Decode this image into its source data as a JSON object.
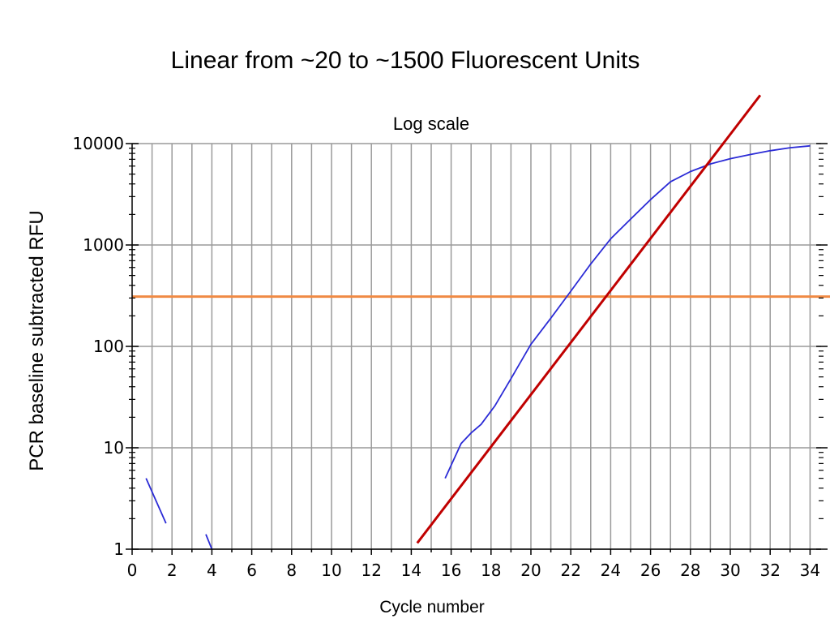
{
  "colors": {
    "grid": "#9a9a9a",
    "axis": "#000000",
    "curve": "#2b2bd6",
    "threshold": "#f08a44",
    "fit_line": "#c00000"
  },
  "chart_data": {
    "type": "line",
    "slide_title": "Linear from ~20 to ~1500 Fluorescent Units",
    "title": "Log scale",
    "xlabel": "Cycle number",
    "ylabel": "PCR baseline subtracted RFU",
    "yscale": "log",
    "xlim": [
      0,
      35
    ],
    "ylim": [
      1,
      10000
    ],
    "grid": true,
    "xticks": [
      0,
      2,
      4,
      6,
      8,
      10,
      12,
      14,
      16,
      18,
      20,
      22,
      24,
      26,
      28,
      30,
      32,
      34
    ],
    "yticks": [
      1,
      10,
      100,
      1000,
      10000
    ],
    "series": [
      {
        "role": "amplification-curve",
        "segments": [
          [
            [
              0.7,
              5
            ],
            [
              1.7,
              1.8
            ]
          ],
          [
            [
              3.7,
              1.4
            ],
            [
              4.0,
              1.0
            ]
          ],
          [
            [
              15.7,
              5
            ],
            [
              16.5,
              11
            ],
            [
              17.0,
              14
            ],
            [
              17.5,
              17
            ],
            [
              18.2,
              26
            ],
            [
              19.0,
              48
            ],
            [
              20.0,
              105
            ],
            [
              21.0,
              190
            ],
            [
              22.0,
              350
            ],
            [
              23.0,
              650
            ],
            [
              24.0,
              1150
            ],
            [
              25.0,
              1800
            ],
            [
              26.0,
              2800
            ],
            [
              27.0,
              4200
            ],
            [
              28.0,
              5300
            ],
            [
              29.0,
              6300
            ],
            [
              30.0,
              7100
            ],
            [
              31.0,
              7800
            ],
            [
              32.0,
              8500
            ],
            [
              33.0,
              9100
            ],
            [
              34.0,
              9500
            ]
          ]
        ]
      },
      {
        "role": "threshold",
        "y": 310
      },
      {
        "role": "exponential-fit",
        "points": [
          [
            14.3,
            1.15
          ],
          [
            31.5,
            30000
          ]
        ]
      }
    ]
  }
}
